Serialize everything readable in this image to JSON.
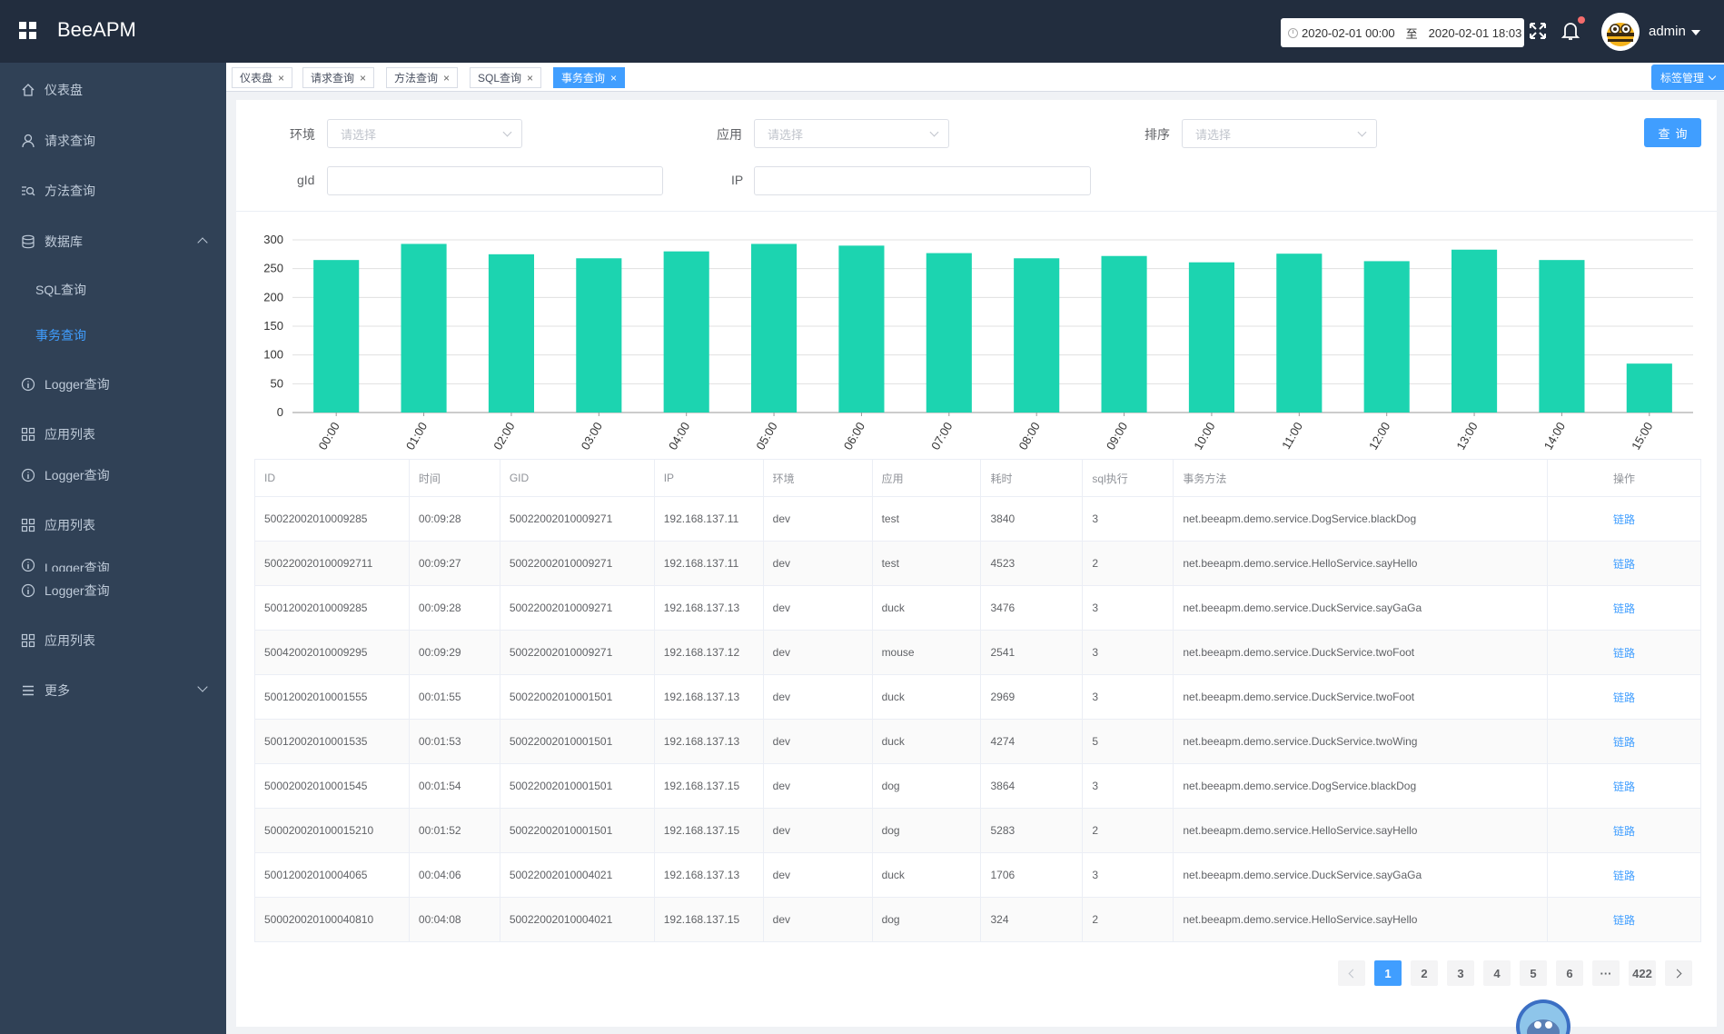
{
  "header": {
    "app_title": "BeeAPM",
    "date_start": "2020-02-01 00:00",
    "date_sep": "至",
    "date_end": "2020-02-01 18:03",
    "user_name": "admin"
  },
  "sidebar": {
    "items": [
      {
        "label": "仪表盘",
        "icon": "home-icon"
      },
      {
        "label": "请求查询",
        "icon": "user-icon"
      },
      {
        "label": "方法查询",
        "icon": "search-list-icon"
      },
      {
        "label": "数据库",
        "icon": "database-icon"
      },
      {
        "label": "SQL查询"
      },
      {
        "label": "事务查询"
      },
      {
        "label": "Logger查询",
        "icon": "info-icon"
      },
      {
        "label": "应用列表",
        "icon": "grid-icon"
      },
      {
        "label": "Logger查询",
        "icon": "info-icon"
      },
      {
        "label": "应用列表",
        "icon": "grid-icon"
      },
      {
        "label": "Logger查询",
        "icon": "info-icon"
      },
      {
        "label": "Logger查询",
        "icon": "info-icon"
      },
      {
        "label": "应用列表",
        "icon": "grid-icon"
      },
      {
        "label": "更多",
        "icon": "menu-icon"
      }
    ]
  },
  "tags": {
    "items": [
      "仪表盘",
      "请求查询",
      "方法查询",
      "SQL查询",
      "事务查询"
    ],
    "close": "×",
    "manage_label": "标签管理"
  },
  "filters": {
    "env_label": "环境",
    "app_label": "应用",
    "sort_label": "排序",
    "gid_label": "gId",
    "ip_label": "IP",
    "select_placeholder": "请选择",
    "query_button": "查询"
  },
  "chart_data": {
    "type": "bar",
    "categories": [
      "00:00",
      "01:00",
      "02:00",
      "03:00",
      "04:00",
      "05:00",
      "06:00",
      "07:00",
      "08:00",
      "09:00",
      "10:00",
      "11:00",
      "12:00",
      "13:00",
      "14:00",
      "15:00"
    ],
    "values": [
      265,
      293,
      275,
      268,
      280,
      293,
      290,
      277,
      268,
      272,
      261,
      276,
      263,
      283,
      265,
      85
    ],
    "ylim": [
      0,
      300
    ],
    "yticks": [
      0,
      50,
      100,
      150,
      200,
      250,
      300
    ],
    "color": "#1cd4b0",
    "grid": true
  },
  "table": {
    "headers": [
      "ID",
      "时间",
      "GID",
      "IP",
      "环境",
      "应用",
      "耗时",
      "sql执行",
      "事务方法",
      "操作"
    ],
    "rows": [
      [
        "50022002010009285",
        "00:09:28",
        "50022002010009271",
        "192.168.137.11",
        "dev",
        "test",
        "3840",
        "3",
        "net.beeapm.demo.service.DogService.blackDog",
        "链路"
      ],
      [
        "500220020100092711",
        "00:09:27",
        "50022002010009271",
        "192.168.137.11",
        "dev",
        "test",
        "4523",
        "2",
        "net.beeapm.demo.service.HelloService.sayHello",
        "链路"
      ],
      [
        "50012002010009285",
        "00:09:28",
        "50022002010009271",
        "192.168.137.13",
        "dev",
        "duck",
        "3476",
        "3",
        "net.beeapm.demo.service.DuckService.sayGaGa",
        "链路"
      ],
      [
        "50042002010009295",
        "00:09:29",
        "50022002010009271",
        "192.168.137.12",
        "dev",
        "mouse",
        "2541",
        "3",
        "net.beeapm.demo.service.DuckService.twoFoot",
        "链路"
      ],
      [
        "50012002010001555",
        "00:01:55",
        "50022002010001501",
        "192.168.137.13",
        "dev",
        "duck",
        "2969",
        "3",
        "net.beeapm.demo.service.DuckService.twoFoot",
        "链路"
      ],
      [
        "50012002010001535",
        "00:01:53",
        "50022002010001501",
        "192.168.137.13",
        "dev",
        "duck",
        "4274",
        "5",
        "net.beeapm.demo.service.DuckService.twoWing",
        "链路"
      ],
      [
        "50002002010001545",
        "00:01:54",
        "50022002010001501",
        "192.168.137.15",
        "dev",
        "dog",
        "3864",
        "3",
        "net.beeapm.demo.service.DogService.blackDog",
        "链路"
      ],
      [
        "500020020100015210",
        "00:01:52",
        "50022002010001501",
        "192.168.137.15",
        "dev",
        "dog",
        "5283",
        "2",
        "net.beeapm.demo.service.HelloService.sayHello",
        "链路"
      ],
      [
        "50012002010004065",
        "00:04:06",
        "50022002010004021",
        "192.168.137.13",
        "dev",
        "duck",
        "1706",
        "3",
        "net.beeapm.demo.service.DuckService.sayGaGa",
        "链路"
      ],
      [
        "500020020100040810",
        "00:04:08",
        "50022002010004021",
        "192.168.137.15",
        "dev",
        "dog",
        "324",
        "2",
        "net.beeapm.demo.service.HelloService.sayHello",
        "链路"
      ]
    ]
  },
  "pagination": {
    "pages": [
      "1",
      "2",
      "3",
      "4",
      "5",
      "6",
      "···",
      "422"
    ],
    "current": "1"
  }
}
